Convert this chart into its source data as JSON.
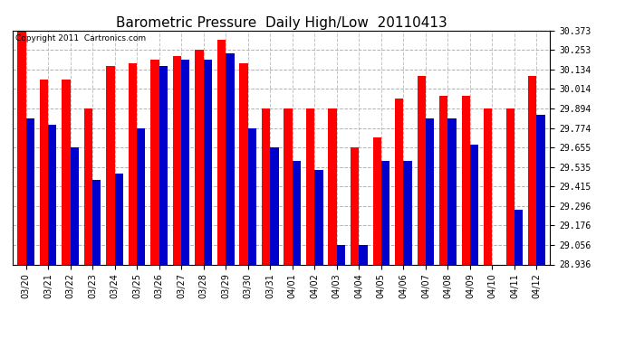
{
  "title": "Barometric Pressure  Daily High/Low  20110413",
  "copyright": "Copyright 2011  Cartronics.com",
  "dates": [
    "03/20",
    "03/21",
    "03/22",
    "03/23",
    "03/24",
    "03/25",
    "03/26",
    "03/27",
    "03/28",
    "03/29",
    "03/30",
    "03/31",
    "04/01",
    "04/02",
    "04/03",
    "04/04",
    "04/05",
    "04/06",
    "04/07",
    "04/08",
    "04/09",
    "04/10",
    "04/11",
    "04/12"
  ],
  "highs": [
    30.373,
    30.074,
    30.074,
    29.894,
    30.154,
    30.174,
    30.194,
    30.214,
    30.254,
    30.314,
    30.174,
    29.894,
    29.894,
    29.894,
    29.894,
    29.654,
    29.714,
    29.954,
    30.094,
    29.974,
    29.974,
    29.894,
    29.894,
    30.094
  ],
  "lows": [
    29.834,
    29.794,
    29.654,
    29.454,
    29.494,
    29.774,
    30.154,
    30.194,
    30.194,
    30.234,
    29.774,
    29.654,
    29.574,
    29.514,
    29.054,
    29.054,
    29.574,
    29.574,
    29.834,
    29.834,
    29.674,
    28.936,
    29.274,
    29.854
  ],
  "bar_width": 0.38,
  "ylim_min": 28.936,
  "ylim_max": 30.373,
  "yticks": [
    28.936,
    29.056,
    29.176,
    29.296,
    29.415,
    29.535,
    29.655,
    29.774,
    29.894,
    30.014,
    30.134,
    30.253,
    30.373
  ],
  "high_color": "#ff0000",
  "low_color": "#0000cc",
  "bg_color": "#ffffff",
  "grid_color": "#aaaaaa",
  "title_fontsize": 11,
  "tick_fontsize": 7,
  "copyright_fontsize": 6.5
}
